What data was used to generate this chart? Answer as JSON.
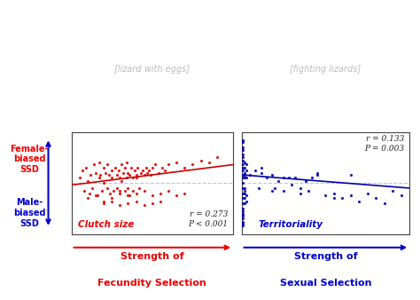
{
  "red_color": "#EE0000",
  "blue_color": "#0000CC",
  "scatter_red": "#DD0000",
  "scatter_blue": "#0000AA",
  "line_red": "#CC0000",
  "line_blue": "#0000AA",
  "zero_line_color": "#AACCDD",
  "bg_color": "#FFFFFF",
  "panel_bg": "#FFFFFF",
  "left_label_top": "Female-\nbiased\nSSD",
  "left_label_bottom": "Male-\nbiased\nSSD",
  "left_plot_title": "Clutch size",
  "right_plot_title": "Territoriality",
  "left_xlabel1": "Strength of",
  "left_xlabel2": "Fecundity Selection",
  "right_xlabel1": "Strength of",
  "right_xlabel2": "Sexual Selection",
  "left_r": "r = 0.273",
  "left_p": "P < 0.001",
  "right_r": "r = 0.133",
  "right_p": "P = 0.003",
  "red_scatter_x": [
    0.05,
    0.07,
    0.08,
    0.09,
    0.1,
    0.11,
    0.12,
    0.13,
    0.14,
    0.15,
    0.16,
    0.17,
    0.17,
    0.18,
    0.19,
    0.2,
    0.2,
    0.21,
    0.22,
    0.22,
    0.23,
    0.24,
    0.25,
    0.25,
    0.26,
    0.27,
    0.28,
    0.28,
    0.29,
    0.3,
    0.3,
    0.31,
    0.31,
    0.32,
    0.33,
    0.33,
    0.34,
    0.34,
    0.35,
    0.35,
    0.36,
    0.36,
    0.37,
    0.38,
    0.38,
    0.39,
    0.4,
    0.4,
    0.41,
    0.42,
    0.43,
    0.44,
    0.45,
    0.46,
    0.47,
    0.48,
    0.49,
    0.5,
    0.52,
    0.54,
    0.56,
    0.58,
    0.6,
    0.65,
    0.7,
    0.75,
    0.8,
    0.85,
    0.9,
    0.1,
    0.15,
    0.2,
    0.25,
    0.3,
    0.35,
    0.4,
    0.45,
    0.5,
    0.55,
    0.6,
    0.65,
    0.7,
    0.2,
    0.25,
    0.3,
    0.35,
    0.4,
    0.45,
    0.5,
    0.55
  ],
  "red_scatter_y": [
    0.05,
    0.12,
    -0.08,
    0.15,
    0.02,
    -0.1,
    0.08,
    -0.05,
    0.18,
    0.1,
    -0.12,
    0.05,
    0.2,
    0.08,
    -0.08,
    0.15,
    0.0,
    0.1,
    -0.05,
    0.18,
    0.08,
    -0.1,
    0.12,
    0.05,
    -0.08,
    0.15,
    0.08,
    -0.05,
    0.12,
    0.05,
    -0.1,
    0.18,
    0.02,
    0.1,
    -0.08,
    0.15,
    0.05,
    0.2,
    -0.05,
    0.1,
    0.08,
    -0.12,
    0.15,
    0.05,
    -0.08,
    0.12,
    0.08,
    0.05,
    0.15,
    -0.05,
    0.1,
    0.12,
    0.08,
    0.15,
    0.1,
    0.12,
    0.08,
    0.15,
    0.18,
    0.1,
    0.15,
    0.12,
    0.18,
    0.2,
    0.15,
    0.18,
    0.22,
    0.2,
    0.25,
    -0.15,
    -0.12,
    -0.18,
    -0.15,
    -0.08,
    -0.12,
    -0.1,
    -0.08,
    -0.12,
    -0.1,
    -0.08,
    -0.12,
    -0.1,
    -0.2,
    -0.18,
    -0.22,
    -0.2,
    -0.18,
    -0.22,
    -0.2,
    -0.18
  ],
  "blue_scatter_x": [
    0.01,
    0.01,
    0.01,
    0.01,
    0.01,
    0.01,
    0.01,
    0.01,
    0.01,
    0.01,
    0.01,
    0.01,
    0.01,
    0.01,
    0.01,
    0.01,
    0.01,
    0.01,
    0.01,
    0.01,
    0.01,
    0.01,
    0.01,
    0.01,
    0.01,
    0.02,
    0.02,
    0.02,
    0.02,
    0.02,
    0.02,
    0.02,
    0.02,
    0.02,
    0.02,
    0.03,
    0.03,
    0.03,
    0.03,
    0.03,
    0.05,
    0.08,
    0.1,
    0.12,
    0.15,
    0.18,
    0.2,
    0.22,
    0.25,
    0.28,
    0.3,
    0.32,
    0.35,
    0.38,
    0.4,
    0.42,
    0.45,
    0.5,
    0.55,
    0.6,
    0.65,
    0.7,
    0.75,
    0.8,
    0.85,
    0.9,
    0.95,
    0.12,
    0.18,
    0.25,
    0.35,
    0.45,
    0.55,
    0.65
  ],
  "blue_scatter_y": [
    0.35,
    0.28,
    0.22,
    0.18,
    0.12,
    0.08,
    0.05,
    0.0,
    -0.05,
    -0.1,
    -0.15,
    -0.2,
    -0.25,
    -0.3,
    -0.35,
    -0.4,
    0.4,
    0.32,
    0.25,
    0.42,
    -0.42,
    -0.38,
    -0.32,
    -0.28,
    0.15,
    0.2,
    0.1,
    -0.1,
    -0.2,
    0.05,
    -0.05,
    0.15,
    -0.15,
    0.08,
    -0.08,
    0.12,
    -0.12,
    0.18,
    -0.18,
    0.05,
    0.08,
    0.12,
    -0.05,
    0.1,
    0.05,
    0.08,
    -0.05,
    0.02,
    -0.08,
    0.05,
    -0.02,
    0.05,
    -0.1,
    0.02,
    -0.08,
    0.05,
    0.08,
    -0.12,
    -0.1,
    -0.15,
    -0.12,
    -0.18,
    -0.1,
    -0.15,
    -0.2,
    -0.08,
    -0.12,
    0.15,
    -0.08,
    0.05,
    -0.05,
    0.1,
    -0.15,
    0.08
  ],
  "red_line_x": [
    0.0,
    1.0
  ],
  "red_line_y": [
    -0.02,
    0.18
  ],
  "blue_line_x": [
    0.0,
    1.0
  ],
  "blue_line_y": [
    0.08,
    -0.05
  ],
  "xlim": [
    0.0,
    1.0
  ],
  "ylim": [
    -0.5,
    0.5
  ]
}
